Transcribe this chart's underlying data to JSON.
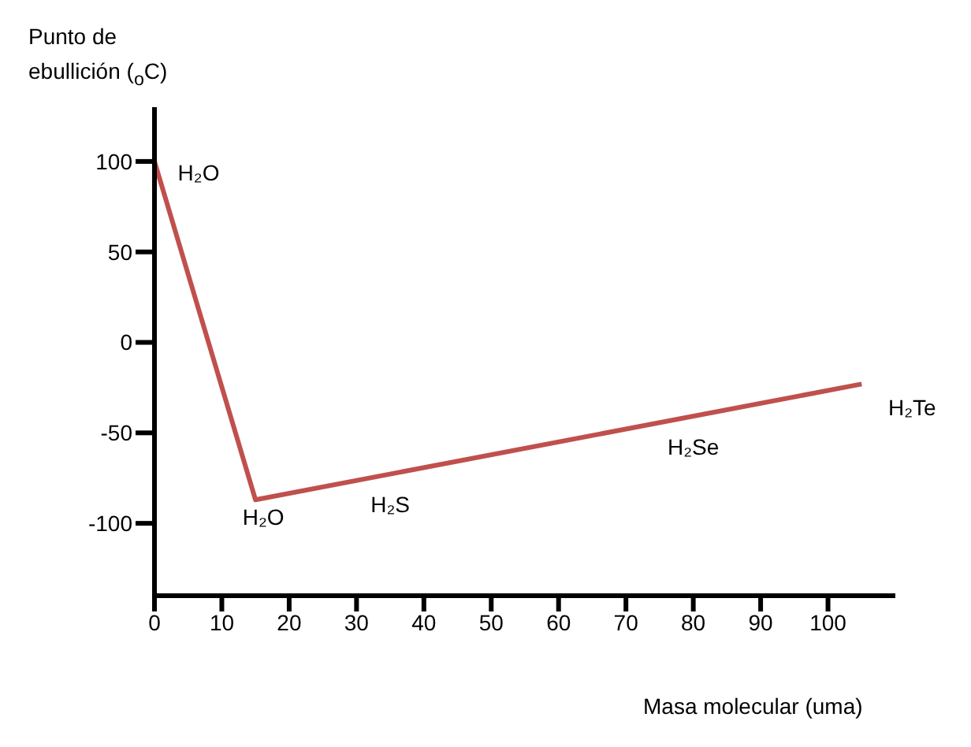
{
  "chart_data": {
    "type": "line",
    "ylabel": "Punto de ebullición ($_{o}$C)",
    "xlabel": "Masa molecular (uma)",
    "x": [
      0,
      15,
      105
    ],
    "series": [
      {
        "color": "#c0504d",
        "values": [
          100,
          -87,
          -23
        ]
      }
    ],
    "xlim": [
      0,
      110
    ],
    "ylim": [
      -140,
      130
    ],
    "xticks": [
      0,
      10,
      20,
      30,
      40,
      50,
      60,
      70,
      80,
      90,
      100
    ],
    "yticks": [
      -100,
      -50,
      0,
      50,
      100
    ],
    "annotations": [
      {
        "text": "H₂O",
        "x": 0,
        "y": 100
      },
      {
        "text": "H₂O",
        "x": 15,
        "y": -87
      },
      {
        "text": "H₂S",
        "x": 35,
        "y": -73
      },
      {
        "text": "H₂Se",
        "x": 80,
        "y": -41
      },
      {
        "text": "H₂Te",
        "x": 105,
        "y": -23
      }
    ],
    "grid": false,
    "legend": false,
    "marker": "none",
    "line_style": "solid"
  }
}
